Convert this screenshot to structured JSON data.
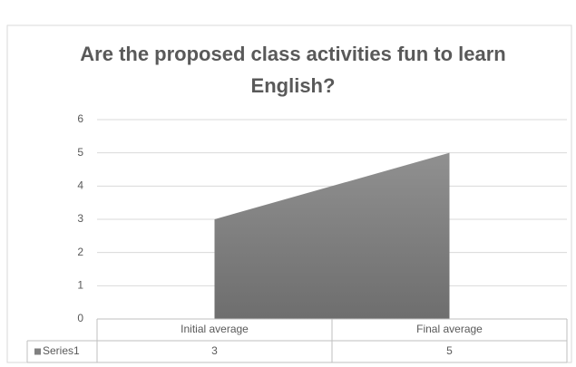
{
  "chart_data": {
    "type": "area",
    "title": "Are the proposed class activities fun to learn English?",
    "categories": [
      "Initial average",
      "Final average"
    ],
    "series": [
      {
        "name": "Series1",
        "color": "#808080",
        "values": [
          3,
          5
        ]
      }
    ],
    "ylim": [
      0,
      6
    ],
    "yticks": [
      0,
      1,
      2,
      3,
      4,
      5,
      6
    ],
    "grid": true
  }
}
